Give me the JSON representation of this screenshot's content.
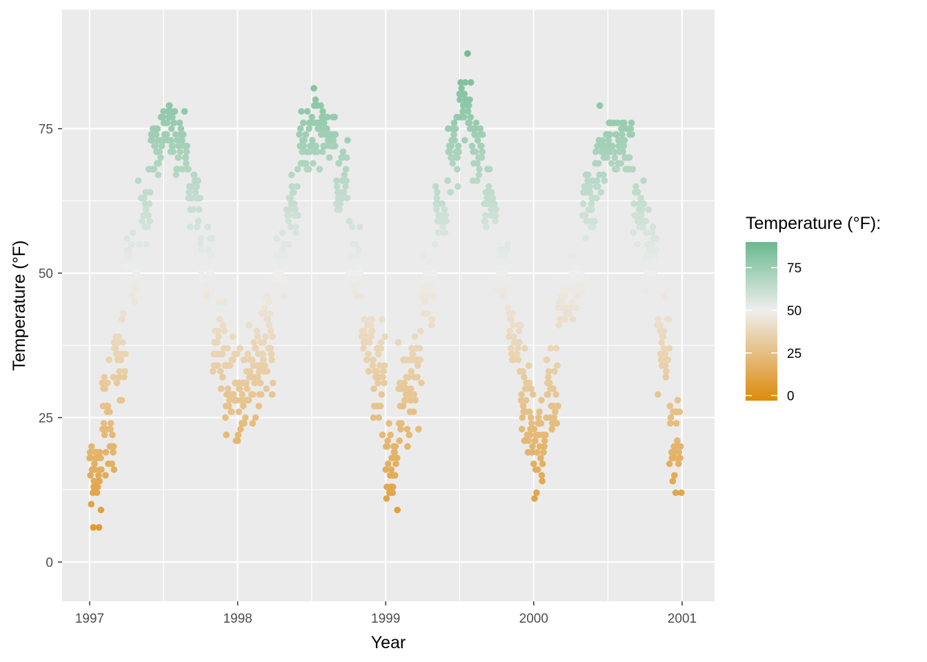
{
  "chart_data": {
    "type": "scatter",
    "xlabel": "Year",
    "ylabel": "Temperature (°F)",
    "xlim": [
      "1996-10-25",
      "2001-03-22"
    ],
    "ylim": [
      -6.8,
      95.6
    ],
    "x_ticks": [
      "1997",
      "1998",
      "1999",
      "2000",
      "2001"
    ],
    "x_tick_dates": [
      "1997-01-01",
      "1998-01-01",
      "1999-01-01",
      "2000-01-01",
      "2001-01-01"
    ],
    "y_ticks": [
      0,
      25,
      50,
      75
    ],
    "grid": true,
    "panel_background": "#ebebeb",
    "legend": {
      "title": "Temperature (°F):",
      "placement": "right",
      "type": "colorbar",
      "ticks": [
        0,
        25,
        50,
        75
      ],
      "range": [
        -3,
        90
      ],
      "colors": {
        "low": "#dd8a0b",
        "mid": "#eeeeee",
        "high": "#6ab98e",
        "midpoint": 50
      }
    },
    "approximate_monthly_temperatures": {
      "1997": [
        15,
        24,
        35,
        50,
        61,
        72,
        76,
        71,
        64,
        51,
        38,
        30
      ],
      "1998": [
        28,
        32,
        38,
        51,
        62,
        72,
        75,
        74,
        66,
        52,
        40,
        32
      ],
      "1999": [
        17,
        28,
        33,
        47,
        60,
        72,
        78,
        72,
        62,
        50,
        40,
        28
      ],
      "2000": [
        20,
        30,
        44,
        48,
        62,
        70,
        72,
        72,
        62,
        54,
        38,
        20
      ]
    },
    "series": [
      {
        "values": []
      }
    ]
  }
}
